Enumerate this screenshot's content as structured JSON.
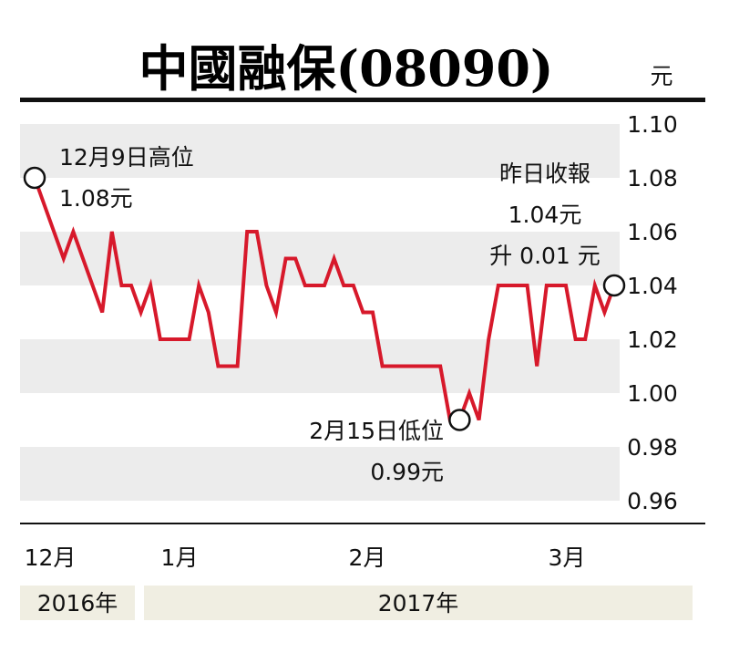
{
  "chart_data": {
    "type": "line",
    "title": "中國融保(08090)",
    "unit": "元",
    "ylim": [
      0.95,
      1.11
    ],
    "yticks": [
      1.1,
      1.08,
      1.06,
      1.04,
      1.02,
      1.0,
      0.98,
      0.96
    ],
    "ytick_labels": [
      "1.10",
      "1.08",
      "1.06",
      "1.04",
      "1.02",
      "1.00",
      "0.98",
      "0.96"
    ],
    "month_labels": [
      "12月",
      "1月",
      "2月",
      "3月"
    ],
    "year_labels": [
      "2016年",
      "2017年"
    ],
    "grid": "alternating horizontal bands",
    "colors": {
      "line": "#d7192b",
      "band": "#ececec",
      "year_band": "#f0eee2"
    },
    "series": [
      {
        "values": [
          1.08,
          1.07,
          1.06,
          1.05,
          1.06,
          1.05,
          1.04,
          1.03,
          1.06,
          1.04,
          1.04,
          1.03,
          1.04,
          1.02,
          1.02,
          1.02,
          1.02,
          1.04,
          1.03,
          1.01,
          1.01,
          1.01,
          1.06,
          1.06,
          1.04,
          1.03,
          1.05,
          1.05,
          1.04,
          1.04,
          1.04,
          1.05,
          1.04,
          1.04,
          1.03,
          1.03,
          1.01,
          1.01,
          1.01,
          1.01,
          1.01,
          1.01,
          1.01,
          0.99,
          0.99,
          1.0,
          0.99,
          1.02,
          1.04,
          1.04,
          1.04,
          1.04,
          1.01,
          1.04,
          1.04,
          1.04,
          1.02,
          1.02,
          1.04,
          1.03,
          1.04
        ]
      }
    ],
    "annotations": [
      {
        "index": 0,
        "lines": [
          "12月9日高位",
          "1.08元"
        ]
      },
      {
        "index": 44,
        "lines": [
          "2月15日低位",
          "0.99元"
        ]
      },
      {
        "index": 60,
        "lines": [
          "昨日收報",
          "1.04元",
          "升 0.01 元"
        ]
      }
    ]
  }
}
